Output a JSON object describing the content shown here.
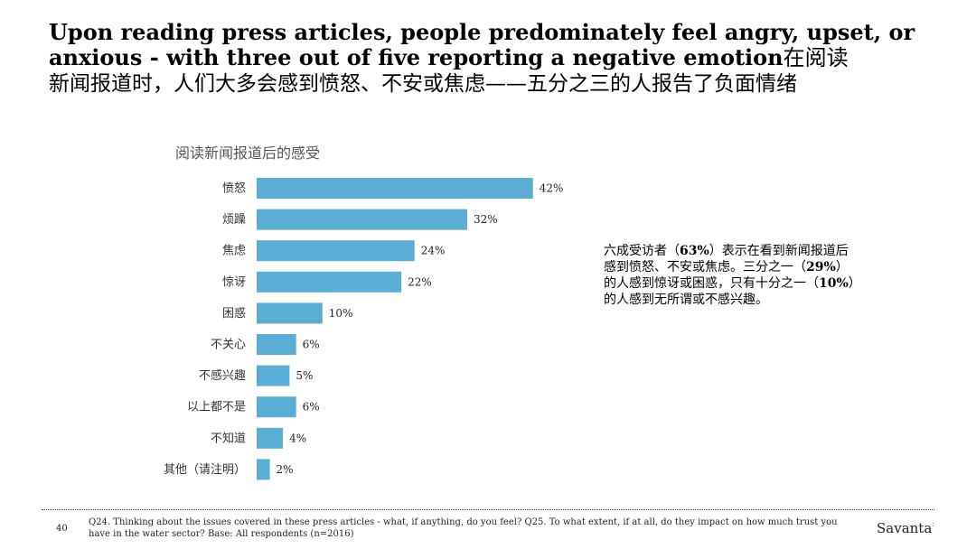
{
  "slide": {
    "title_en": "Upon reading press articles, people predominately feel angry, upset, or anxious - with three out of five reporting a negative emotion",
    "title_cn_inline": "在阅读",
    "title_cn": "新闻报道时，人们大多会感到愤怒、不安或焦虑——五分之三的人报告了负面情绪",
    "page_number": "40",
    "footnote": "Q24. Thinking about the issues covered in these press articles - what, if anything, do you feel?  Q25. To what extent, if at all, do they impact on how much trust you have in the water sector? Base: All respondents (n=2016)",
    "logo_text": "Savanta",
    "logo_mark": ":"
  },
  "callout": {
    "p1": "六成受访者（",
    "n1": "63%",
    "p2": "）表示在看到新闻报道后感到愤怒、不安或焦虑。三分之一（",
    "n2": "29%",
    "p3": "）的人感到惊讶或困惑，只有十分之一（",
    "n3": "10%",
    "p4": "）的人感到无所谓或不感兴趣。"
  },
  "chart_data": {
    "type": "bar",
    "orientation": "horizontal",
    "title": "阅读新闻报道后的感受",
    "categories": [
      "愤怒",
      "烦躁",
      "焦虑",
      "惊讶",
      "困惑",
      "不关心",
      "不感兴趣",
      "以上都不是",
      "不知道",
      "其他（请注明）"
    ],
    "values": [
      42,
      32,
      24,
      22,
      10,
      6,
      5,
      6,
      4,
      2
    ],
    "value_labels": [
      "42%",
      "32%",
      "24%",
      "22%",
      "10%",
      "6%",
      "5%",
      "6%",
      "4%",
      "2%"
    ],
    "unit": "%",
    "color": "#5aaed6",
    "grid": false,
    "legend": "none"
  }
}
